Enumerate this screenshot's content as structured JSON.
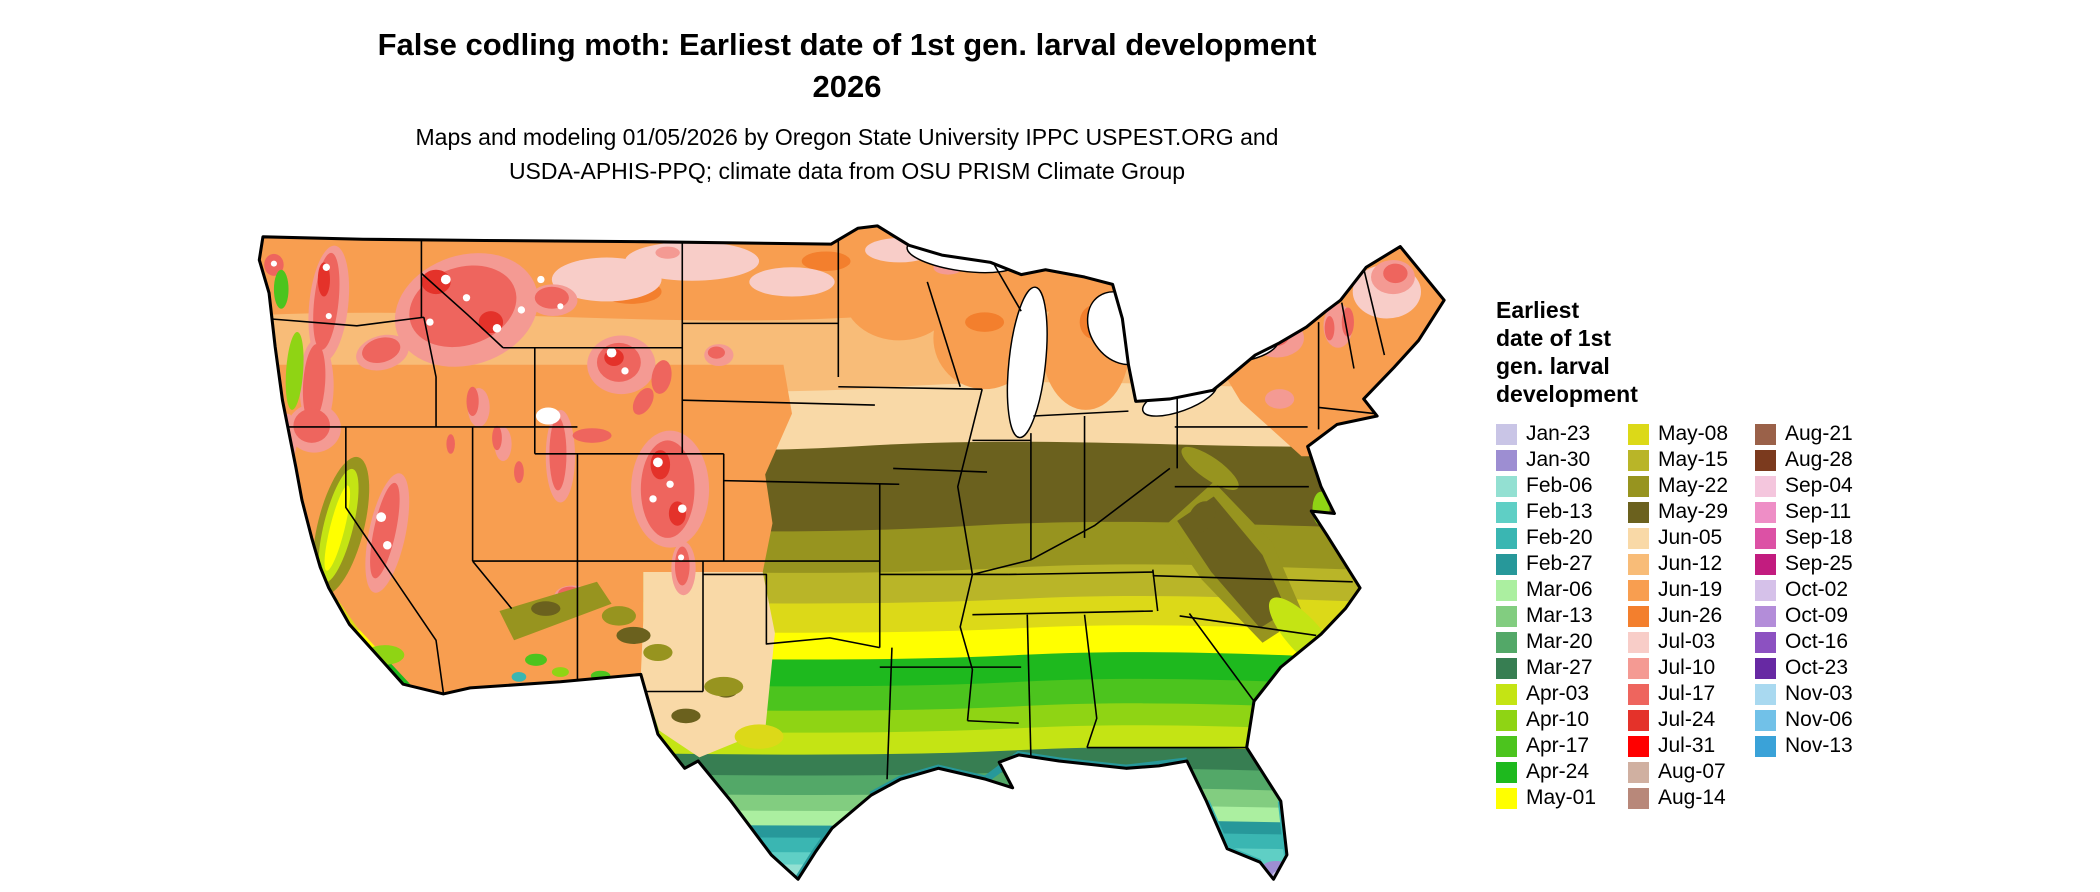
{
  "title": {
    "line1": "False codling moth: Earliest date of 1st gen. larval development",
    "line2": "2026"
  },
  "subtitle": {
    "line1": "Maps and modeling 01/05/2026 by Oregon State University IPPC USPEST.ORG and",
    "line2": "USDA-APHIS-PPQ; climate data from OSU PRISM Climate Group"
  },
  "legend": {
    "title_lines": [
      "Earliest",
      "date of 1st",
      "gen. larval",
      "development"
    ],
    "column_sizes": [
      15,
      15,
      13
    ],
    "entries": [
      {
        "label": "Jan-23",
        "color": "#c9c5e6"
      },
      {
        "label": "Jan-30",
        "color": "#9d8ed2"
      },
      {
        "label": "Feb-06",
        "color": "#93e0d2"
      },
      {
        "label": "Feb-13",
        "color": "#5fcfc5"
      },
      {
        "label": "Feb-20",
        "color": "#3ab6b2"
      },
      {
        "label": "Feb-27",
        "color": "#27989a"
      },
      {
        "label": "Mar-06",
        "color": "#abefa0"
      },
      {
        "label": "Mar-13",
        "color": "#82cd80"
      },
      {
        "label": "Mar-20",
        "color": "#53a868"
      },
      {
        "label": "Mar-27",
        "color": "#377e52"
      },
      {
        "label": "Apr-03",
        "color": "#c4e414"
      },
      {
        "label": "Apr-10",
        "color": "#8fd414"
      },
      {
        "label": "Apr-17",
        "color": "#4cc41e"
      },
      {
        "label": "Apr-24",
        "color": "#1eb91e"
      },
      {
        "label": "May-01",
        "color": "#ffff00"
      },
      {
        "label": "May-08",
        "color": "#dcd918"
      },
      {
        "label": "May-15",
        "color": "#b9b528"
      },
      {
        "label": "May-22",
        "color": "#97941f"
      },
      {
        "label": "May-29",
        "color": "#6b611e"
      },
      {
        "label": "Jun-05",
        "color": "#f9d9a7"
      },
      {
        "label": "Jun-12",
        "color": "#f8bc78"
      },
      {
        "label": "Jun-19",
        "color": "#f89e50"
      },
      {
        "label": "Jun-26",
        "color": "#f37f2d"
      },
      {
        "label": "Jul-03",
        "color": "#f8cdc8"
      },
      {
        "label": "Jul-10",
        "color": "#f49a93"
      },
      {
        "label": "Jul-17",
        "color": "#ee655e"
      },
      {
        "label": "Jul-24",
        "color": "#e4322a"
      },
      {
        "label": "Jul-31",
        "color": "#ff0000"
      },
      {
        "label": "Aug-07",
        "color": "#d0b0a1"
      },
      {
        "label": "Aug-14",
        "color": "#b8887a"
      },
      {
        "label": "Aug-21",
        "color": "#9a6149"
      },
      {
        "label": "Aug-28",
        "color": "#7b3a1e"
      },
      {
        "label": "Sep-04",
        "color": "#f4c6dd"
      },
      {
        "label": "Sep-11",
        "color": "#ee8ec6"
      },
      {
        "label": "Sep-18",
        "color": "#dc51a5"
      },
      {
        "label": "Sep-25",
        "color": "#c21c7f"
      },
      {
        "label": "Oct-02",
        "color": "#d5c1e9"
      },
      {
        "label": "Oct-09",
        "color": "#b38dd9"
      },
      {
        "label": "Oct-16",
        "color": "#8c51c1"
      },
      {
        "label": "Oct-23",
        "color": "#6729a3"
      },
      {
        "label": "Nov-03",
        "color": "#a9d9f0"
      },
      {
        "label": "Nov-06",
        "color": "#71c1e8"
      },
      {
        "label": "Nov-13",
        "color": "#3aa2d8"
      }
    ]
  }
}
